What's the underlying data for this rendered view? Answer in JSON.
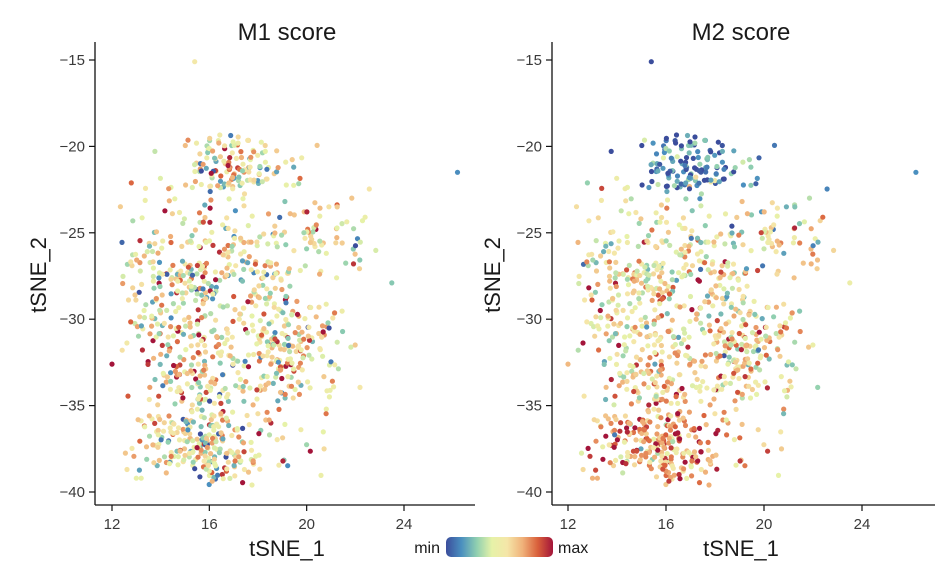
{
  "chart_data": [
    {
      "type": "scatter",
      "title": "M1 score",
      "xlabel": "tSNE_1",
      "ylabel": "tSNE_2",
      "xlim": [
        11,
        27
      ],
      "ylim": [
        -41,
        -14
      ],
      "xticks": [
        12,
        16,
        20,
        24
      ],
      "yticks": [
        -15,
        -20,
        -25,
        -30,
        -35,
        -40
      ],
      "xtick_labels": [
        "12",
        "16",
        "20",
        "24"
      ],
      "ytick_labels": [
        "−15",
        "−20",
        "−25",
        "−30",
        "−35",
        "−40"
      ],
      "color_variable": "M1 score (min to max)",
      "n_points": 1100,
      "notes": "Cells spread fairly uniformly in score across the tSNE embedding"
    },
    {
      "type": "scatter",
      "title": "M2 score",
      "xlabel": "tSNE_1",
      "ylabel": "tSNE_2",
      "xlim": [
        11,
        27
      ],
      "ylim": [
        -41,
        -14
      ],
      "xticks": [
        12,
        16,
        20,
        24
      ],
      "yticks": [
        -15,
        -20,
        -25,
        -30,
        -35,
        -40
      ],
      "xtick_labels": [
        "12",
        "16",
        "20",
        "24"
      ],
      "ytick_labels": [
        "−15",
        "−20",
        "−25",
        "−30",
        "−35",
        "−40"
      ],
      "color_variable": "M2 score (min to max)",
      "n_points": 1100,
      "notes": "Upper cluster (tSNE_2 about -19 to -23) shows low (blue) M2 scores; lower region enriched for high (red) scores"
    }
  ],
  "legend": {
    "min_label": "min",
    "max_label": "max",
    "colors": [
      "#3b4d9c",
      "#4a8fbf",
      "#8fcfb0",
      "#e6f2a8",
      "#f5e6a8",
      "#f0b27a",
      "#d9603b",
      "#a3143a"
    ]
  }
}
